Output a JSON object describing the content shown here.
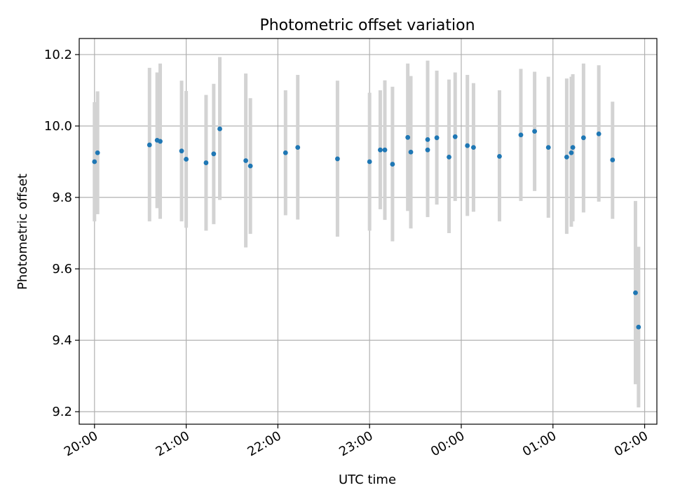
{
  "chart_data": {
    "type": "scatter",
    "title": "Photometric offset variation",
    "xlabel": "UTC time",
    "ylabel": "Photometric offset",
    "grid": true,
    "xlim": [
      "19:50",
      "02:08"
    ],
    "ylim": [
      9.165,
      10.245
    ],
    "x_ticks": [
      "20:00",
      "21:00",
      "22:00",
      "23:00",
      "00:00",
      "01:00",
      "02:00"
    ],
    "y_ticks": [
      9.2,
      9.4,
      9.6,
      9.8,
      10.0,
      10.2
    ],
    "point_color": "#1f77b4",
    "errorbar_color": "#d3d3d3",
    "points": [
      {
        "t": "20:00",
        "y": 9.9,
        "lo": 9.733,
        "hi": 10.067
      },
      {
        "t": "20:02",
        "y": 9.925,
        "lo": 9.753,
        "hi": 10.097
      },
      {
        "t": "20:36",
        "y": 9.947,
        "lo": 9.733,
        "hi": 10.163
      },
      {
        "t": "20:41",
        "y": 9.96,
        "lo": 9.77,
        "hi": 10.15
      },
      {
        "t": "20:43",
        "y": 9.957,
        "lo": 9.74,
        "hi": 10.175
      },
      {
        "t": "20:57",
        "y": 9.93,
        "lo": 9.733,
        "hi": 10.127
      },
      {
        "t": "21:00",
        "y": 9.907,
        "lo": 9.715,
        "hi": 10.098
      },
      {
        "t": "21:13",
        "y": 9.897,
        "lo": 9.707,
        "hi": 10.087
      },
      {
        "t": "21:18",
        "y": 9.922,
        "lo": 9.725,
        "hi": 10.118
      },
      {
        "t": "21:22",
        "y": 9.992,
        "lo": 9.793,
        "hi": 10.193
      },
      {
        "t": "21:39",
        "y": 9.903,
        "lo": 9.66,
        "hi": 10.147
      },
      {
        "t": "21:42",
        "y": 9.888,
        "lo": 9.698,
        "hi": 10.078
      },
      {
        "t": "22:05",
        "y": 9.925,
        "lo": 9.75,
        "hi": 10.1
      },
      {
        "t": "22:13",
        "y": 9.94,
        "lo": 9.738,
        "hi": 10.143
      },
      {
        "t": "22:39",
        "y": 9.908,
        "lo": 9.69,
        "hi": 10.127
      },
      {
        "t": "23:00",
        "y": 9.9,
        "lo": 9.707,
        "hi": 10.093
      },
      {
        "t": "23:07",
        "y": 9.933,
        "lo": 9.767,
        "hi": 10.1
      },
      {
        "t": "23:10",
        "y": 9.933,
        "lo": 9.737,
        "hi": 10.128
      },
      {
        "t": "23:15",
        "y": 9.893,
        "lo": 9.677,
        "hi": 10.11
      },
      {
        "t": "23:25",
        "y": 9.968,
        "lo": 9.762,
        "hi": 10.175
      },
      {
        "t": "23:27",
        "y": 9.927,
        "lo": 9.713,
        "hi": 10.14
      },
      {
        "t": "23:38",
        "y": 9.962,
        "lo": 9.745,
        "hi": 10.183
      },
      {
        "t": "23:38",
        "y": 9.933,
        "lo": 9.75,
        "hi": 10.117
      },
      {
        "t": "23:44",
        "y": 9.967,
        "lo": 9.78,
        "hi": 10.155
      },
      {
        "t": "23:52",
        "y": 9.913,
        "lo": 9.7,
        "hi": 10.13
      },
      {
        "t": "23:56",
        "y": 9.97,
        "lo": 9.79,
        "hi": 10.15
      },
      {
        "t": "00:04",
        "y": 9.945,
        "lo": 9.748,
        "hi": 10.143
      },
      {
        "t": "00:08",
        "y": 9.94,
        "lo": 9.76,
        "hi": 10.12
      },
      {
        "t": "00:25",
        "y": 9.915,
        "lo": 9.733,
        "hi": 10.1
      },
      {
        "t": "00:39",
        "y": 9.975,
        "lo": 9.79,
        "hi": 10.16
      },
      {
        "t": "00:48",
        "y": 9.985,
        "lo": 9.818,
        "hi": 10.152
      },
      {
        "t": "00:57",
        "y": 9.94,
        "lo": 9.743,
        "hi": 10.138
      },
      {
        "t": "01:09",
        "y": 9.913,
        "lo": 9.698,
        "hi": 10.133
      },
      {
        "t": "01:12",
        "y": 9.925,
        "lo": 9.718,
        "hi": 10.138
      },
      {
        "t": "01:13",
        "y": 9.94,
        "lo": 9.733,
        "hi": 10.145
      },
      {
        "t": "01:20",
        "y": 9.967,
        "lo": 9.758,
        "hi": 10.175
      },
      {
        "t": "01:30",
        "y": 9.978,
        "lo": 9.788,
        "hi": 10.17
      },
      {
        "t": "01:39",
        "y": 9.905,
        "lo": 9.74,
        "hi": 10.068
      },
      {
        "t": "01:54",
        "y": 9.533,
        "lo": 9.277,
        "hi": 9.79
      },
      {
        "t": "01:56",
        "y": 9.437,
        "lo": 9.212,
        "hi": 9.662
      }
    ]
  }
}
